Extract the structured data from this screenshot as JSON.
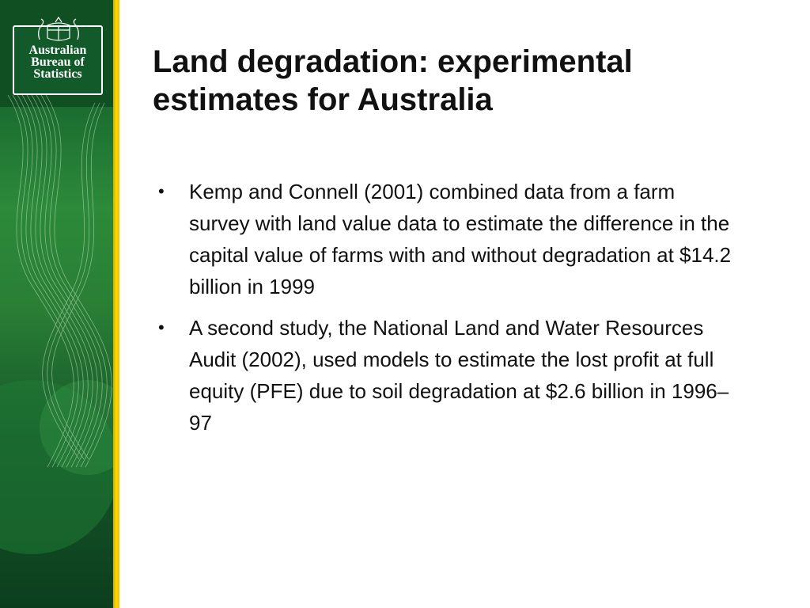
{
  "logo": {
    "lines": [
      "Australian",
      "Bureau of",
      "Statistics"
    ]
  },
  "slide": {
    "title": "Land degradation: experimental estimates for Australia",
    "bullets": [
      "Kemp and Connell (2001) combined data from a farm survey with land value data to estimate the difference in the capital value of farms with and without degradation at $14.2 billion in 1999",
      "A second study, the National Land and Water Resources Audit (2002), used models to estimate the lost profit at full equity (PFE) due to soil degradation at $2.6 billion in 1996–97"
    ]
  },
  "colors": {
    "sidebar_green": "#1b6d30",
    "stripe_yellow": "#ffd800",
    "text": "#111111"
  }
}
